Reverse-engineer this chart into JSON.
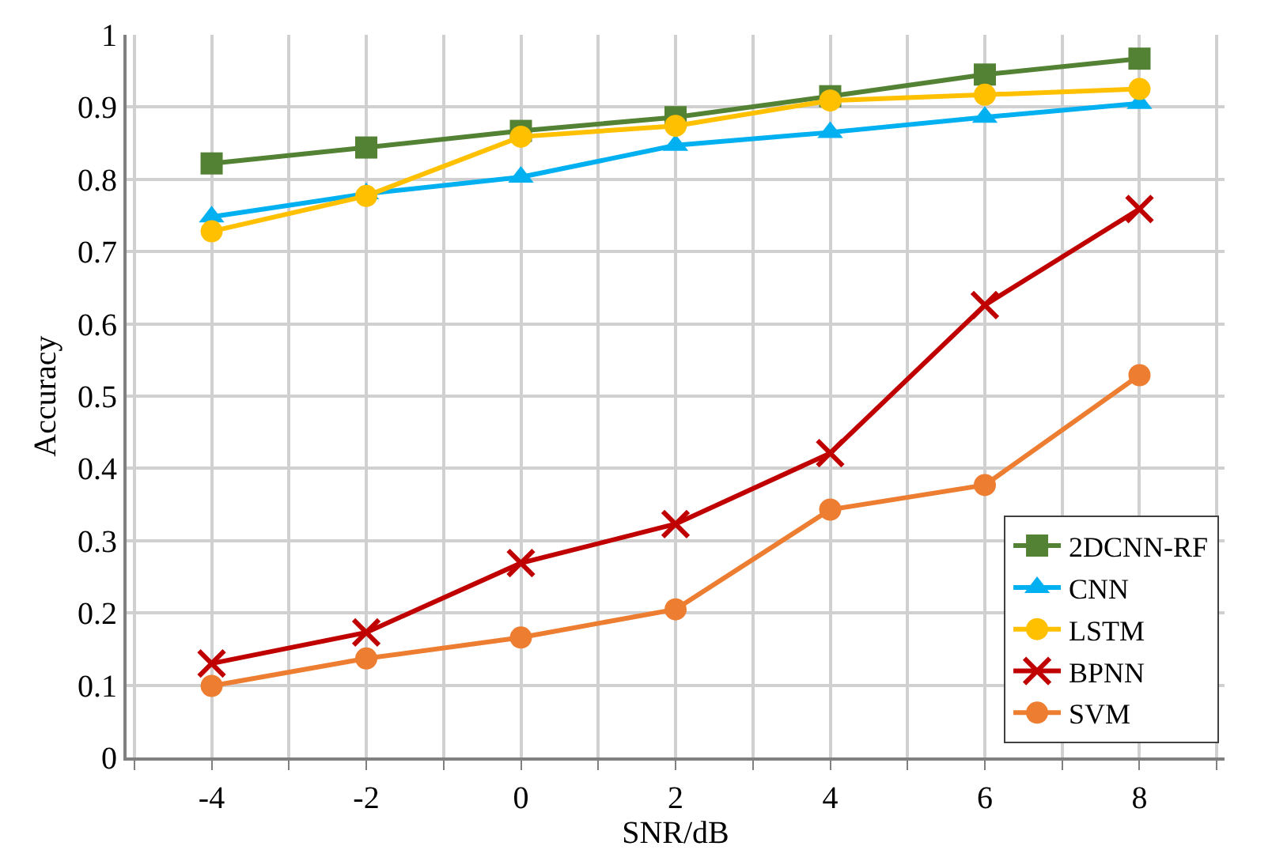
{
  "chart_data": {
    "type": "line",
    "xlabel": "SNR/dB",
    "ylabel": "Accuracy",
    "x": [
      -4,
      -2,
      0,
      2,
      4,
      6,
      8
    ],
    "xlim": [
      -5.1,
      9.1
    ],
    "xticks": [
      -4,
      {
        "value": -5,
        "label": null
      },
      {
        "value": -3,
        "label": null
      },
      -2,
      {
        "value": -1,
        "label": null
      },
      0,
      {
        "value": 1,
        "label": null
      },
      2,
      {
        "value": 3,
        "label": null
      },
      4,
      {
        "value": 5,
        "label": null
      },
      6,
      {
        "value": 7,
        "label": null
      },
      8,
      {
        "value": 9,
        "label": null
      }
    ],
    "ylim": [
      0,
      1
    ],
    "yticks": [
      0,
      0.1,
      0.2,
      0.3,
      0.4,
      0.5,
      0.6,
      0.7,
      0.8,
      0.9,
      1
    ],
    "grid": true,
    "legend": "bottom right",
    "line_style": "solid",
    "series": [
      {
        "name": "2DCNN-RF",
        "color": "#548235",
        "marker": "square",
        "values": [
          0.822,
          0.844,
          0.867,
          0.886,
          0.915,
          0.945,
          0.967
        ]
      },
      {
        "name": "CNN",
        "color": "#00b0f0",
        "marker": "triangle",
        "values": [
          0.748,
          0.78,
          0.803,
          0.847,
          0.865,
          0.886,
          0.905
        ]
      },
      {
        "name": "LSTM",
        "color": "#ffc000",
        "marker": "circle",
        "values": [
          0.728,
          0.777,
          0.859,
          0.874,
          0.909,
          0.917,
          0.925
        ]
      },
      {
        "name": "BPNN",
        "color": "#c00000",
        "marker": "cross",
        "values": [
          0.13,
          0.173,
          0.269,
          0.323,
          0.421,
          0.626,
          0.759
        ]
      },
      {
        "name": "SVM",
        "color": "#ed7d31",
        "marker": "circle",
        "values": [
          0.099,
          0.137,
          0.166,
          0.205,
          0.343,
          0.377,
          0.529
        ]
      }
    ]
  }
}
